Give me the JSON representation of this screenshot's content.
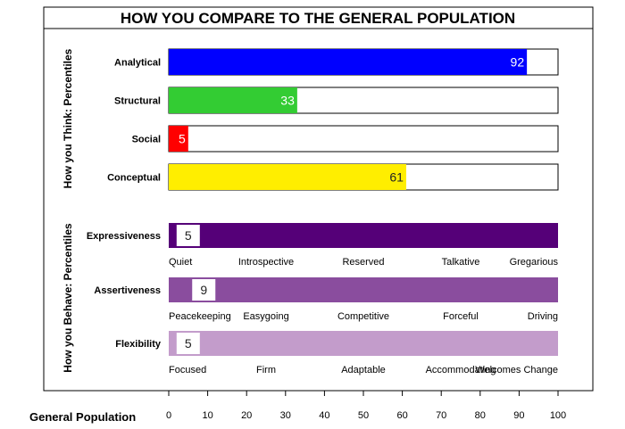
{
  "chart_data": {
    "type": "bar",
    "title": "HOW YOU COMPARE TO THE GENERAL POPULATION",
    "think_group_label": "How you Think: Percentiles",
    "behave_group_label": "How you Behave: Percentiles",
    "xlabel": "General Population",
    "xlim": [
      0,
      100
    ],
    "xticks": [
      0,
      10,
      20,
      30,
      40,
      50,
      60,
      70,
      80,
      90,
      100
    ],
    "think_series": [
      {
        "name": "Analytical",
        "value": 92,
        "color": "#0000ff",
        "label_color": "#ffffff"
      },
      {
        "name": "Structural",
        "value": 33,
        "color": "#33cc33",
        "label_color": "#ffffff"
      },
      {
        "name": "Social",
        "value": 5,
        "color": "#ff0000",
        "label_color": "#ffffff"
      },
      {
        "name": "Conceptual",
        "value": 61,
        "color": "#ffee00",
        "label_color": "#222222"
      }
    ],
    "behave_series": [
      {
        "name": "Expressiveness",
        "value": 5,
        "color": "#550078",
        "scale_labels": [
          "Quiet",
          "Introspective",
          "Reserved",
          "Talkative",
          "Gregarious"
        ]
      },
      {
        "name": "Assertiveness",
        "value": 9,
        "color": "#8a4d9e",
        "scale_labels": [
          "Peacekeeping",
          "Easygoing",
          "Competitive",
          "Forceful",
          "Driving"
        ]
      },
      {
        "name": "Flexibility",
        "value": 5,
        "color": "#c39ccb",
        "scale_labels": [
          "Focused",
          "Firm",
          "Adaptable",
          "Accommodating",
          "Welcomes Change"
        ]
      }
    ]
  }
}
